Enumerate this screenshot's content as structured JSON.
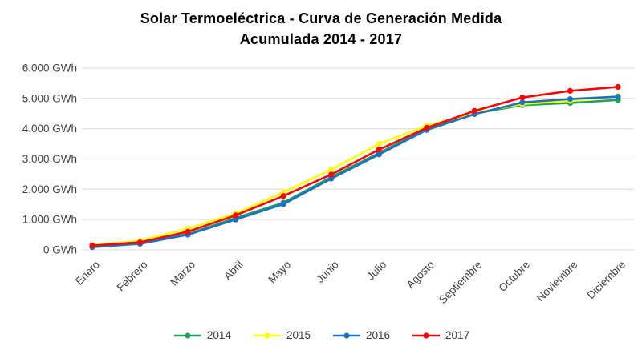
{
  "title": {
    "line1": "Solar Termoeléctrica - Curva de Generación Medida",
    "line2": "Acumulada 2014 - 2017"
  },
  "chart_data": {
    "type": "line",
    "categories": [
      "Enero",
      "Febrero",
      "Marzo",
      "Abril",
      "Mayo",
      "Junio",
      "Julio",
      "Agosto",
      "Septiembre",
      "Octubre",
      "Noviembre",
      "Diciembre"
    ],
    "series": [
      {
        "name": "2014",
        "color": "#1FA15C",
        "values": [
          100,
          210,
          520,
          1050,
          1560,
          2400,
          3200,
          4000,
          4500,
          4780,
          4850,
          4950
        ]
      },
      {
        "name": "2015",
        "color": "#FFFF00",
        "values": [
          160,
          300,
          700,
          1200,
          1900,
          2650,
          3500,
          4100,
          4520,
          4820,
          4920,
          5080
        ]
      },
      {
        "name": "2016",
        "color": "#1B72C4",
        "values": [
          90,
          200,
          500,
          1000,
          1510,
          2350,
          3150,
          3960,
          4480,
          4870,
          4980,
          5060
        ]
      },
      {
        "name": "2017",
        "color": "#FF0000",
        "values": [
          140,
          250,
          600,
          1140,
          1780,
          2490,
          3310,
          4030,
          4590,
          5030,
          5250,
          5380
        ]
      }
    ],
    "title": "Solar Termoeléctrica - Curva de Generación Medida Acumulada 2014 - 2017",
    "xlabel": "",
    "ylabel": "GWh",
    "ylim": [
      0,
      6000
    ],
    "ytick_step": 1000,
    "ytick_labels": [
      "0 GWh",
      "1.000 GWh",
      "2.000 GWh",
      "3.000 GWh",
      "4.000 GWh",
      "5.000 GWh",
      "6.000 GWh"
    ],
    "grid": "horizontal",
    "legend_position": "bottom"
  },
  "colors": {
    "grid": "#E2E2E2",
    "tick_text": "#3F3F3F",
    "title_text": "#000000",
    "background": "#FFFFFF"
  }
}
